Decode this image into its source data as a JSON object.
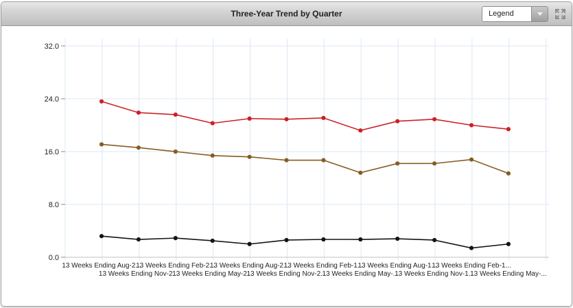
{
  "window": {
    "title": "Three-Year Trend by Quarter",
    "legend_dropdown": {
      "label": "Legend"
    }
  },
  "colors": {
    "gridline": "#dce8f3",
    "axis_line": "#c2c2c2",
    "tick": "#8a8a8a",
    "label_text": "#222222"
  },
  "chart_data": {
    "type": "line",
    "title": "Three-Year Trend by Quarter",
    "categories": [
      "13 Weeks Ending Aug-2...",
      "13 Weeks Ending Nov-2...",
      "13 Weeks Ending Feb-2...",
      "13 Weeks Ending May-2...",
      "13 Weeks Ending Aug-2...",
      "13 Weeks Ending Nov-2...",
      "13 Weeks Ending Feb-1...",
      "13 Weeks Ending May-...",
      "13 Weeks Ending Aug-1...",
      "13 Weeks Ending Nov-1...",
      "13 Weeks Ending Feb-1...",
      "13 Weeks Ending May-..."
    ],
    "series": [
      {
        "name": "red",
        "color": "#cc2027",
        "values": [
          23.6,
          21.9,
          21.6,
          20.3,
          21.0,
          20.9,
          21.1,
          19.2,
          20.6,
          20.9,
          20.0,
          19.4
        ]
      },
      {
        "name": "brown",
        "color": "#875c21",
        "values": [
          17.1,
          16.6,
          16.0,
          15.4,
          15.2,
          14.7,
          14.7,
          12.8,
          14.2,
          14.2,
          14.8,
          12.7
        ]
      },
      {
        "name": "black",
        "color": "#141414",
        "values": [
          3.2,
          2.7,
          2.9,
          2.5,
          2.0,
          2.6,
          2.7,
          2.7,
          2.8,
          2.6,
          1.4,
          2.0
        ]
      }
    ],
    "yticks": [
      {
        "label": "32.0",
        "value": 32
      },
      {
        "label": "24.0",
        "value": 24
      },
      {
        "label": "16.0",
        "value": 16
      },
      {
        "label": "8.0",
        "value": 8
      },
      {
        "label": "0.0",
        "value": 0
      }
    ],
    "ylim": [
      0,
      32
    ],
    "grid": true,
    "legend_position": "collapsed-dropdown"
  }
}
